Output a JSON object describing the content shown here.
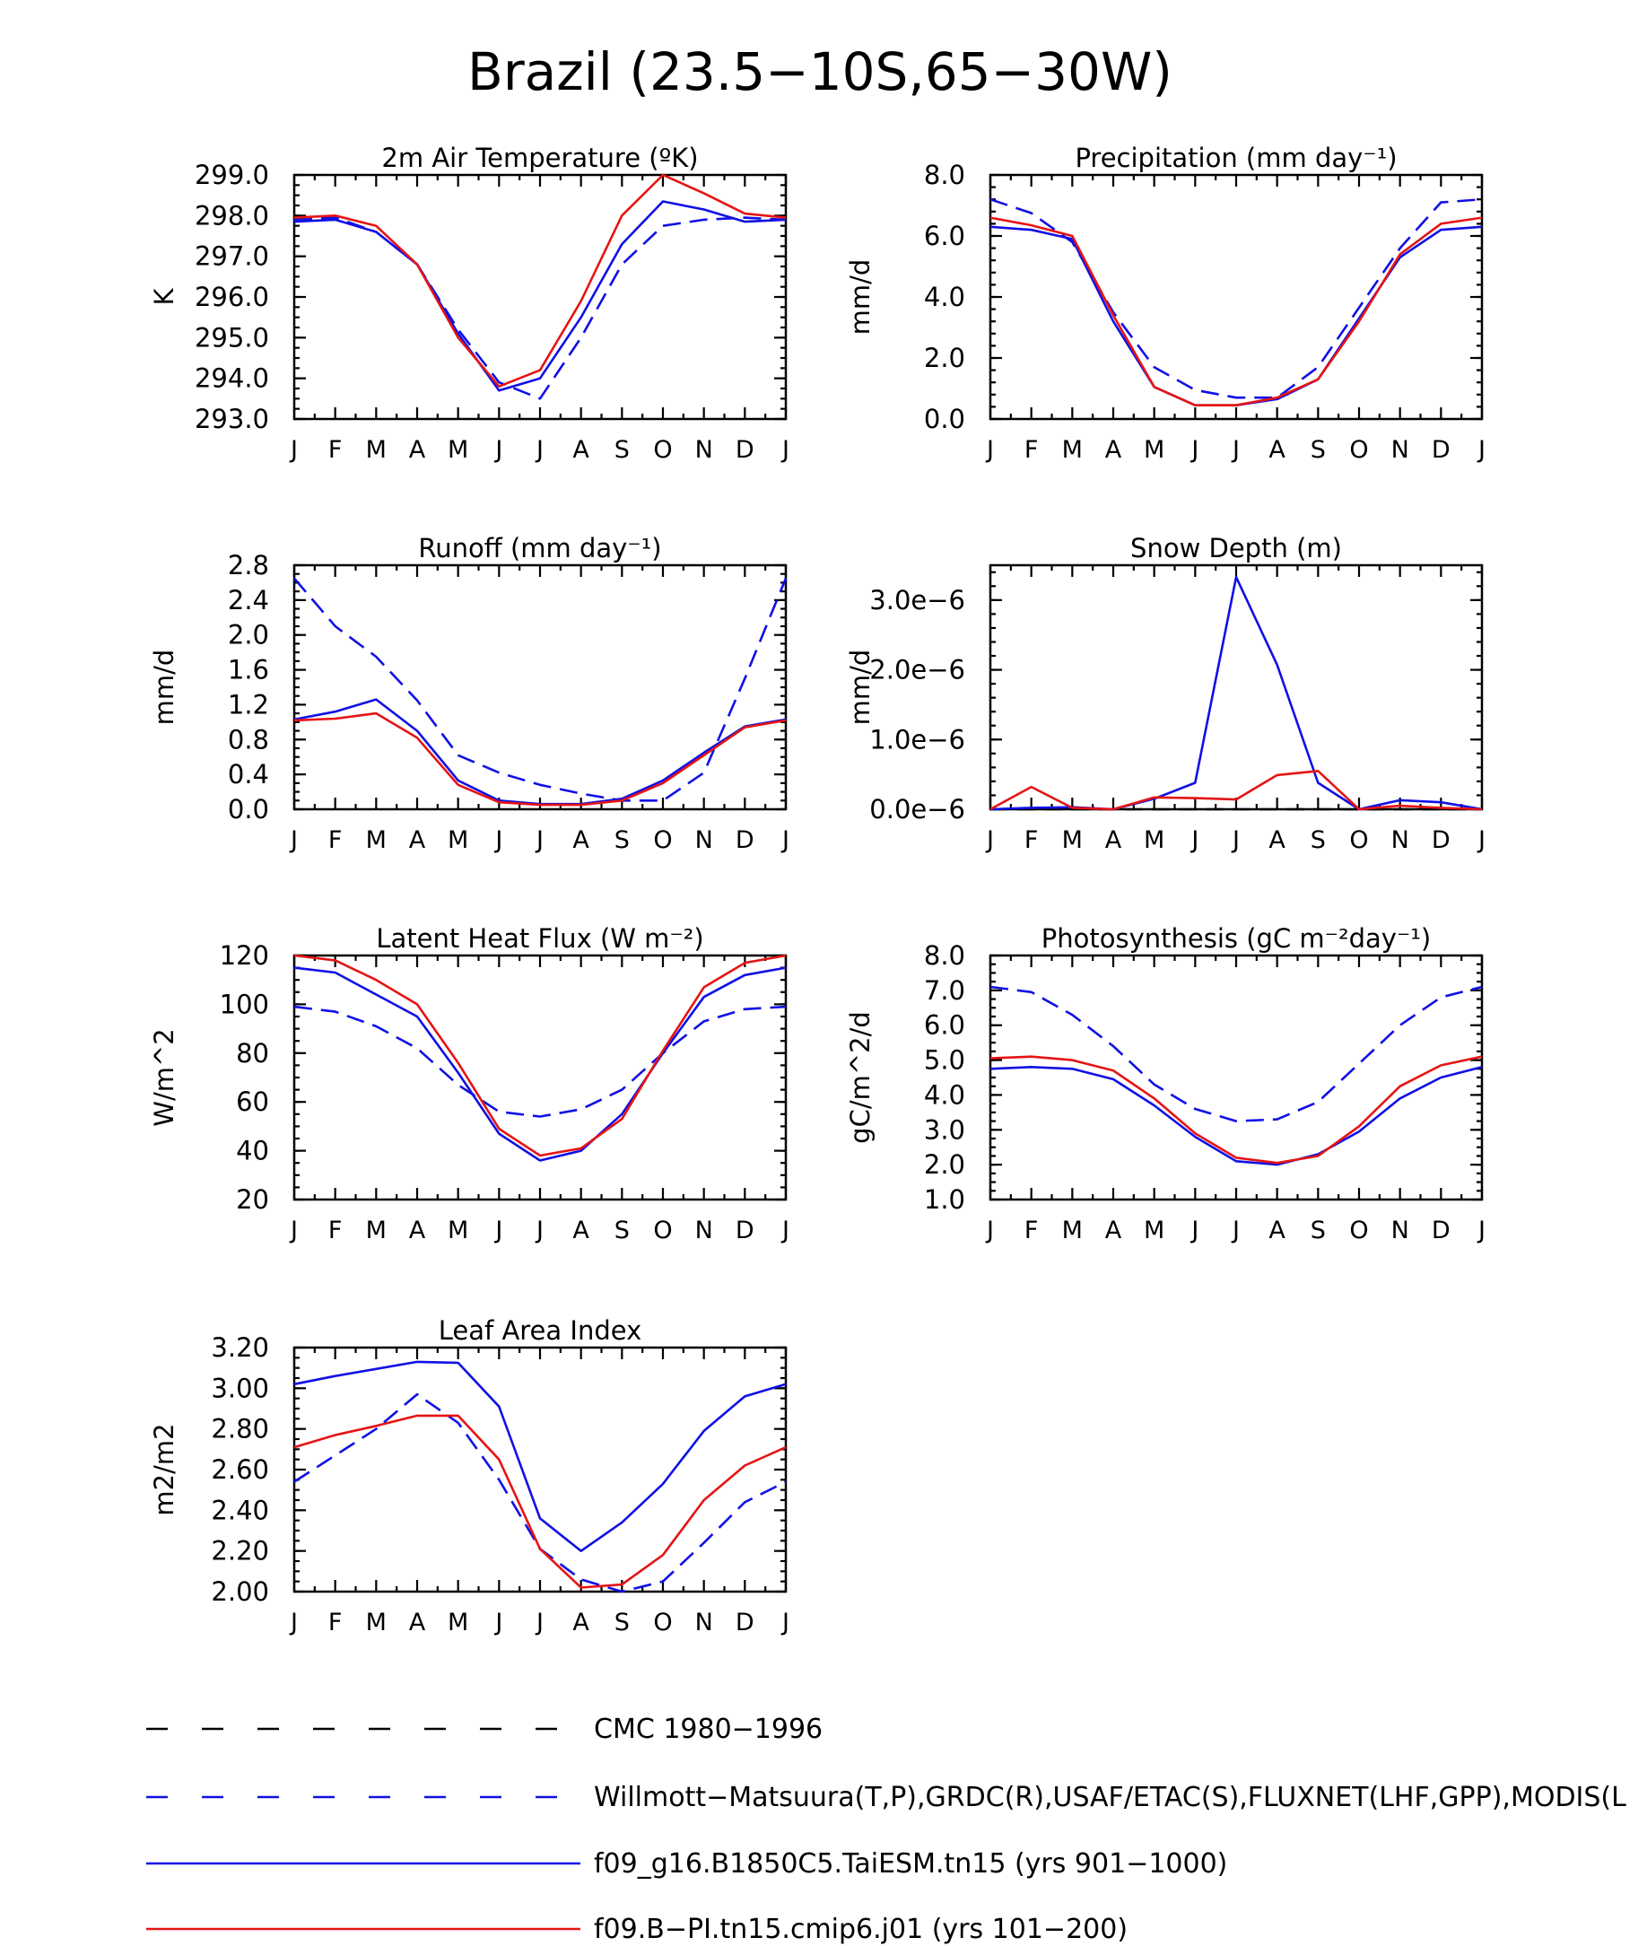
{
  "figure_title": "Brazil (23.5−10S,65−30W)",
  "colors": {
    "cmc": "#000000",
    "obs": "#1010e6",
    "taiesm": "#1010e6",
    "cmip6": "#e61414"
  },
  "legend": [
    {
      "key": "cmc",
      "label": "CMC 1980−1996",
      "color": "#000000",
      "dash": "long"
    },
    {
      "key": "obs",
      "label": "Willmott−Matsuura(T,P),GRDC(R),USAF/ETAC(S),FLUXNET(LHF,GPP),MODIS(L",
      "color": "#1010e6",
      "dash": "long"
    },
    {
      "key": "taiesm",
      "label": "f09_g16.B1850C5.TaiESM.tn15 (yrs 901−1000)",
      "color": "#1010e6",
      "dash": "solid"
    },
    {
      "key": "cmip6",
      "label": "f09.B−PI.tn15.cmip6.j01 (yrs 101−200)",
      "color": "#e61414",
      "dash": "solid"
    }
  ],
  "chart_data": [
    {
      "type": "line",
      "title": "2m Air Temperature (ºK)",
      "ylabel": "K",
      "x": [
        "J",
        "F",
        "M",
        "A",
        "M",
        "J",
        "J",
        "A",
        "S",
        "O",
        "N",
        "D",
        "J"
      ],
      "ylim": [
        293.0,
        299.0
      ],
      "yticks": [
        293.0,
        294.0,
        295.0,
        296.0,
        297.0,
        298.0,
        299.0
      ],
      "yticklabels": [
        "293.0",
        "294.0",
        "295.0",
        "296.0",
        "297.0",
        "298.0",
        "299.0"
      ],
      "series": [
        {
          "key": "obs",
          "dash": "dashed",
          "values": [
            297.9,
            297.95,
            297.6,
            296.8,
            295.2,
            293.9,
            293.5,
            295.0,
            296.8,
            297.75,
            297.9,
            297.95,
            297.9
          ]
        },
        {
          "key": "taiesm",
          "dash": "solid",
          "values": [
            297.85,
            297.9,
            297.6,
            296.8,
            295.1,
            293.7,
            294.0,
            295.5,
            297.3,
            298.35,
            298.15,
            297.85,
            297.9
          ]
        },
        {
          "key": "cmip6",
          "dash": "solid",
          "values": [
            297.95,
            298.0,
            297.75,
            296.8,
            295.0,
            293.8,
            294.2,
            295.9,
            298.0,
            299.0,
            298.55,
            298.05,
            297.95
          ]
        }
      ]
    },
    {
      "type": "line",
      "title": "Precipitation (mm day⁻¹)",
      "ylabel": "mm/d",
      "x": [
        "J",
        "F",
        "M",
        "A",
        "M",
        "J",
        "J",
        "A",
        "S",
        "O",
        "N",
        "D",
        "J"
      ],
      "ylim": [
        0.0,
        8.0
      ],
      "yticks": [
        0,
        2,
        4,
        6,
        8
      ],
      "yticklabels": [
        "0.0",
        "2.0",
        "4.0",
        "6.0",
        "8.0"
      ],
      "series": [
        {
          "key": "obs",
          "dash": "dashed",
          "values": [
            7.2,
            6.75,
            5.8,
            3.5,
            1.7,
            0.95,
            0.7,
            0.7,
            1.7,
            3.65,
            5.6,
            7.1,
            7.2
          ]
        },
        {
          "key": "taiesm",
          "dash": "solid",
          "values": [
            6.3,
            6.2,
            5.9,
            3.2,
            1.05,
            0.45,
            0.45,
            0.65,
            1.3,
            3.3,
            5.3,
            6.2,
            6.3
          ]
        },
        {
          "key": "cmip6",
          "dash": "solid",
          "values": [
            6.6,
            6.35,
            6.0,
            3.4,
            1.05,
            0.45,
            0.45,
            0.7,
            1.3,
            3.2,
            5.4,
            6.4,
            6.6
          ]
        }
      ]
    },
    {
      "type": "line",
      "title": "Runoff (mm day⁻¹)",
      "ylabel": "mm/d",
      "x": [
        "J",
        "F",
        "M",
        "A",
        "M",
        "J",
        "J",
        "A",
        "S",
        "O",
        "N",
        "D",
        "J"
      ],
      "ylim": [
        0.0,
        2.8
      ],
      "yticks": [
        0.0,
        0.4,
        0.8,
        1.2,
        1.6,
        2.0,
        2.4,
        2.8
      ],
      "yticklabels": [
        "0.0",
        "0.4",
        "0.8",
        "1.2",
        "1.6",
        "2.0",
        "2.4",
        "2.8"
      ],
      "series": [
        {
          "key": "obs",
          "dash": "dashed",
          "values": [
            2.65,
            2.1,
            1.75,
            1.25,
            0.62,
            0.42,
            0.28,
            0.18,
            0.1,
            0.1,
            0.42,
            1.5,
            2.65
          ]
        },
        {
          "key": "taiesm",
          "dash": "solid",
          "values": [
            1.03,
            1.12,
            1.26,
            0.9,
            0.33,
            0.1,
            0.06,
            0.06,
            0.12,
            0.33,
            0.65,
            0.95,
            1.03
          ]
        },
        {
          "key": "cmip6",
          "dash": "solid",
          "values": [
            1.02,
            1.04,
            1.1,
            0.82,
            0.28,
            0.08,
            0.05,
            0.05,
            0.1,
            0.3,
            0.62,
            0.94,
            1.02
          ]
        }
      ]
    },
    {
      "type": "line",
      "title": "Snow Depth (m)",
      "ylabel": "mm/d",
      "x": [
        "J",
        "F",
        "M",
        "A",
        "M",
        "J",
        "J",
        "A",
        "S",
        "O",
        "N",
        "D",
        "J"
      ],
      "ylim": [
        0.0,
        3.5e-06
      ],
      "yticks": [
        0,
        1e-06,
        2e-06,
        3e-06
      ],
      "yticklabels": [
        "0.0e−6",
        "1.0e−6",
        "2.0e−6",
        "3.0e−6"
      ],
      "series": [
        {
          "key": "cmc",
          "dash": "dashed",
          "values": [
            0,
            0,
            0,
            0,
            0,
            0,
            0,
            0,
            0,
            0,
            0,
            0,
            0
          ]
        },
        {
          "key": "taiesm",
          "dash": "solid",
          "values": [
            0,
            2e-08,
            3e-08,
            0,
            1.5e-07,
            3.8e-07,
            3.33e-06,
            2.07e-06,
            3.8e-07,
            0,
            1.3e-07,
            1e-07,
            0
          ]
        },
        {
          "key": "cmip6",
          "dash": "solid",
          "values": [
            0,
            3.2e-07,
            2e-08,
            0,
            1.7e-07,
            1.6e-07,
            1.4e-07,
            4.9e-07,
            5.5e-07,
            0,
            5e-08,
            2e-08,
            0
          ]
        }
      ]
    },
    {
      "type": "line",
      "title": "Latent Heat Flux (W m⁻²)",
      "ylabel": "W/m^2",
      "x": [
        "J",
        "F",
        "M",
        "A",
        "M",
        "J",
        "J",
        "A",
        "S",
        "O",
        "N",
        "D",
        "J"
      ],
      "ylim": [
        20,
        120
      ],
      "yticks": [
        20,
        40,
        60,
        80,
        100,
        120
      ],
      "yticklabels": [
        "20",
        "40",
        "60",
        "80",
        "100",
        "120"
      ],
      "series": [
        {
          "key": "obs",
          "dash": "dashed",
          "values": [
            99,
            97,
            91,
            82,
            67,
            56,
            54,
            57,
            65,
            80,
            93,
            98,
            99
          ]
        },
        {
          "key": "taiesm",
          "dash": "solid",
          "values": [
            115,
            113,
            104,
            95,
            72,
            47,
            36,
            40,
            55,
            80,
            103,
            112,
            115
          ]
        },
        {
          "key": "cmip6",
          "dash": "solid",
          "values": [
            120,
            118,
            110,
            100,
            76,
            49,
            38,
            41,
            53,
            81,
            107,
            117,
            120
          ]
        }
      ]
    },
    {
      "type": "line",
      "title": "Photosynthesis (gC m⁻²day⁻¹)",
      "ylabel": "gC/m^2/d",
      "x": [
        "J",
        "F",
        "M",
        "A",
        "M",
        "J",
        "J",
        "A",
        "S",
        "O",
        "N",
        "D",
        "J"
      ],
      "ylim": [
        1.0,
        8.0
      ],
      "yticks": [
        1,
        2,
        3,
        4,
        5,
        6,
        7,
        8
      ],
      "yticklabels": [
        "1.0",
        "2.0",
        "3.0",
        "4.0",
        "5.0",
        "6.0",
        "7.0",
        "8.0"
      ],
      "series": [
        {
          "key": "obs",
          "dash": "dashed",
          "values": [
            7.1,
            6.95,
            6.3,
            5.4,
            4.3,
            3.6,
            3.25,
            3.3,
            3.8,
            4.9,
            6.0,
            6.8,
            7.1
          ]
        },
        {
          "key": "taiesm",
          "dash": "solid",
          "values": [
            4.75,
            4.8,
            4.75,
            4.45,
            3.7,
            2.8,
            2.1,
            2.0,
            2.3,
            2.95,
            3.9,
            4.5,
            4.8
          ]
        },
        {
          "key": "cmip6",
          "dash": "solid",
          "values": [
            5.05,
            5.1,
            5.0,
            4.7,
            3.9,
            2.9,
            2.2,
            2.05,
            2.25,
            3.1,
            4.25,
            4.85,
            5.1
          ]
        }
      ]
    },
    {
      "type": "line",
      "title": "Leaf Area Index",
      "ylabel": "m2/m2",
      "x": [
        "J",
        "F",
        "M",
        "A",
        "M",
        "J",
        "J",
        "A",
        "S",
        "O",
        "N",
        "D",
        "J"
      ],
      "ylim": [
        2.0,
        3.2
      ],
      "yticks": [
        2.0,
        2.2,
        2.4,
        2.6,
        2.8,
        3.0,
        3.2
      ],
      "yticklabels": [
        "2.00",
        "2.20",
        "2.40",
        "2.60",
        "2.80",
        "3.00",
        "3.20"
      ],
      "series": [
        {
          "key": "obs",
          "dash": "dashed",
          "values": [
            2.54,
            2.67,
            2.8,
            2.97,
            2.83,
            2.55,
            2.21,
            2.06,
            2.0,
            2.05,
            2.24,
            2.44,
            2.54
          ]
        },
        {
          "key": "taiesm",
          "dash": "solid",
          "values": [
            3.02,
            3.06,
            3.095,
            3.13,
            3.125,
            2.91,
            2.36,
            2.2,
            2.34,
            2.53,
            2.79,
            2.96,
            3.02
          ]
        },
        {
          "key": "cmip6",
          "dash": "solid",
          "values": [
            2.71,
            2.77,
            2.815,
            2.865,
            2.865,
            2.65,
            2.21,
            2.02,
            2.035,
            2.18,
            2.45,
            2.62,
            2.71
          ]
        }
      ]
    }
  ]
}
